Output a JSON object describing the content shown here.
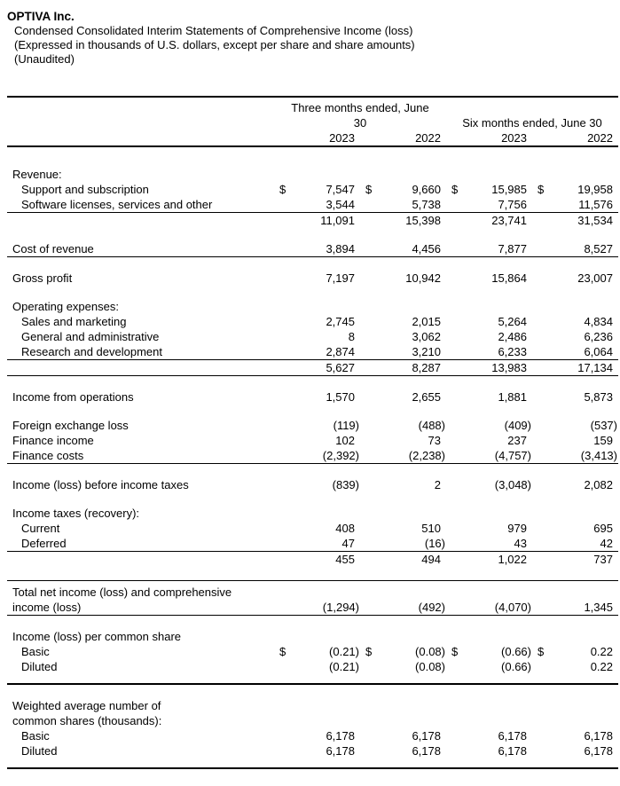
{
  "header": {
    "company": "OPTIVA Inc.",
    "subtitle1": "Condensed Consolidated Interim Statements of Comprehensive Income (loss)",
    "subtitle2": "(Expressed in thousands of U.S. dollars, except per share and share amounts)",
    "subtitle3": "(Unaudited)"
  },
  "colors": {
    "text": "#000000",
    "background": "#ffffff",
    "rule": "#000000"
  },
  "table": {
    "currency_symbol": "$",
    "period_headers": [
      "Three months ended, June\n30",
      "Six months ended, June 30"
    ],
    "years": [
      "2023",
      "2022",
      "2023",
      "2022"
    ],
    "rows": [
      {
        "label": "Revenue:"
      },
      {
        "label": "Support and subscription",
        "indent": true,
        "dollar": true,
        "values": [
          "7,547",
          "9,660",
          "15,985",
          "19,958"
        ]
      },
      {
        "label": "Software licenses, services and other",
        "indent": true,
        "values": [
          "3,544",
          "5,738",
          "7,756",
          "11,576"
        ],
        "rule_below": true
      },
      {
        "label": "",
        "values": [
          "11,091",
          "15,398",
          "23,741",
          "31,534"
        ]
      },
      {
        "blank": true
      },
      {
        "label": "Cost of revenue",
        "values": [
          "3,894",
          "4,456",
          "7,877",
          "8,527"
        ],
        "rule_below": true
      },
      {
        "blank": true
      },
      {
        "label": "Gross profit",
        "values": [
          "7,197",
          "10,942",
          "15,864",
          "23,007"
        ]
      },
      {
        "blank": true
      },
      {
        "label": "Operating expenses:"
      },
      {
        "label": "Sales and marketing",
        "indent": true,
        "values": [
          "2,745",
          "2,015",
          "5,264",
          "4,834"
        ]
      },
      {
        "label": "General and administrative",
        "indent": true,
        "values": [
          "8",
          "3,062",
          "2,486",
          "6,236"
        ]
      },
      {
        "label": "Research and development",
        "indent": true,
        "values": [
          "2,874",
          "3,210",
          "6,233",
          "6,064"
        ],
        "rule_below": true
      },
      {
        "label": "",
        "values": [
          "5,627",
          "8,287",
          "13,983",
          "17,134"
        ],
        "rule_below": true
      },
      {
        "blank": true
      },
      {
        "label": "Income from operations",
        "values": [
          "1,570",
          "2,655",
          "1,881",
          "5,873"
        ]
      },
      {
        "blank": true
      },
      {
        "label": "Foreign exchange loss",
        "values": [
          "(119)",
          "(488)",
          "(409)",
          "(537)"
        ]
      },
      {
        "label": "Finance income",
        "values": [
          "102",
          "73",
          "237",
          "159"
        ]
      },
      {
        "label": "Finance costs",
        "values": [
          "(2,392)",
          "(2,238)",
          "(4,757)",
          "(3,413)"
        ],
        "rule_below": true
      },
      {
        "blank": true
      },
      {
        "label": "Income (loss) before income taxes",
        "values": [
          "(839)",
          "2",
          "(3,048)",
          "2,082"
        ]
      },
      {
        "blank": true
      },
      {
        "label": "Income taxes (recovery):"
      },
      {
        "label": "Current",
        "indent": true,
        "values": [
          "408",
          "510",
          "979",
          "695"
        ]
      },
      {
        "label": "Deferred",
        "indent": true,
        "values": [
          "47",
          "(16)",
          "43",
          "42"
        ],
        "rule_below": true
      },
      {
        "label": "",
        "values": [
          "455",
          "494",
          "1,022",
          "737"
        ]
      },
      {
        "blank": true
      },
      {
        "label": "Total net income (loss) and comprehensive\nincome (loss)",
        "values": [
          "(1,294)",
          "(492)",
          "(4,070)",
          "1,345"
        ],
        "rule_above": true,
        "rule_below": true
      },
      {
        "blank": true
      },
      {
        "label": "Income (loss) per common share"
      },
      {
        "label": "Basic",
        "indent": true,
        "dollar": true,
        "values": [
          "(0.21)",
          "(0.08)",
          "(0.66)",
          "0.22"
        ]
      },
      {
        "label": "Diluted",
        "indent": true,
        "values": [
          "(0.21)",
          "(0.08)",
          "(0.66)",
          "0.22"
        ]
      },
      {
        "blank": true,
        "rule_below": true,
        "major": true
      },
      {
        "blank": true
      },
      {
        "label": "Weighted average number of\ncommon shares (thousands):"
      },
      {
        "label": "Basic",
        "indent": true,
        "values": [
          "6,178",
          "6,178",
          "6,178",
          "6,178"
        ]
      },
      {
        "label": "Diluted",
        "indent": true,
        "values": [
          "6,178",
          "6,178",
          "6,178",
          "6,178"
        ]
      },
      {
        "blank": true,
        "rule_below": true,
        "major": true
      }
    ]
  }
}
